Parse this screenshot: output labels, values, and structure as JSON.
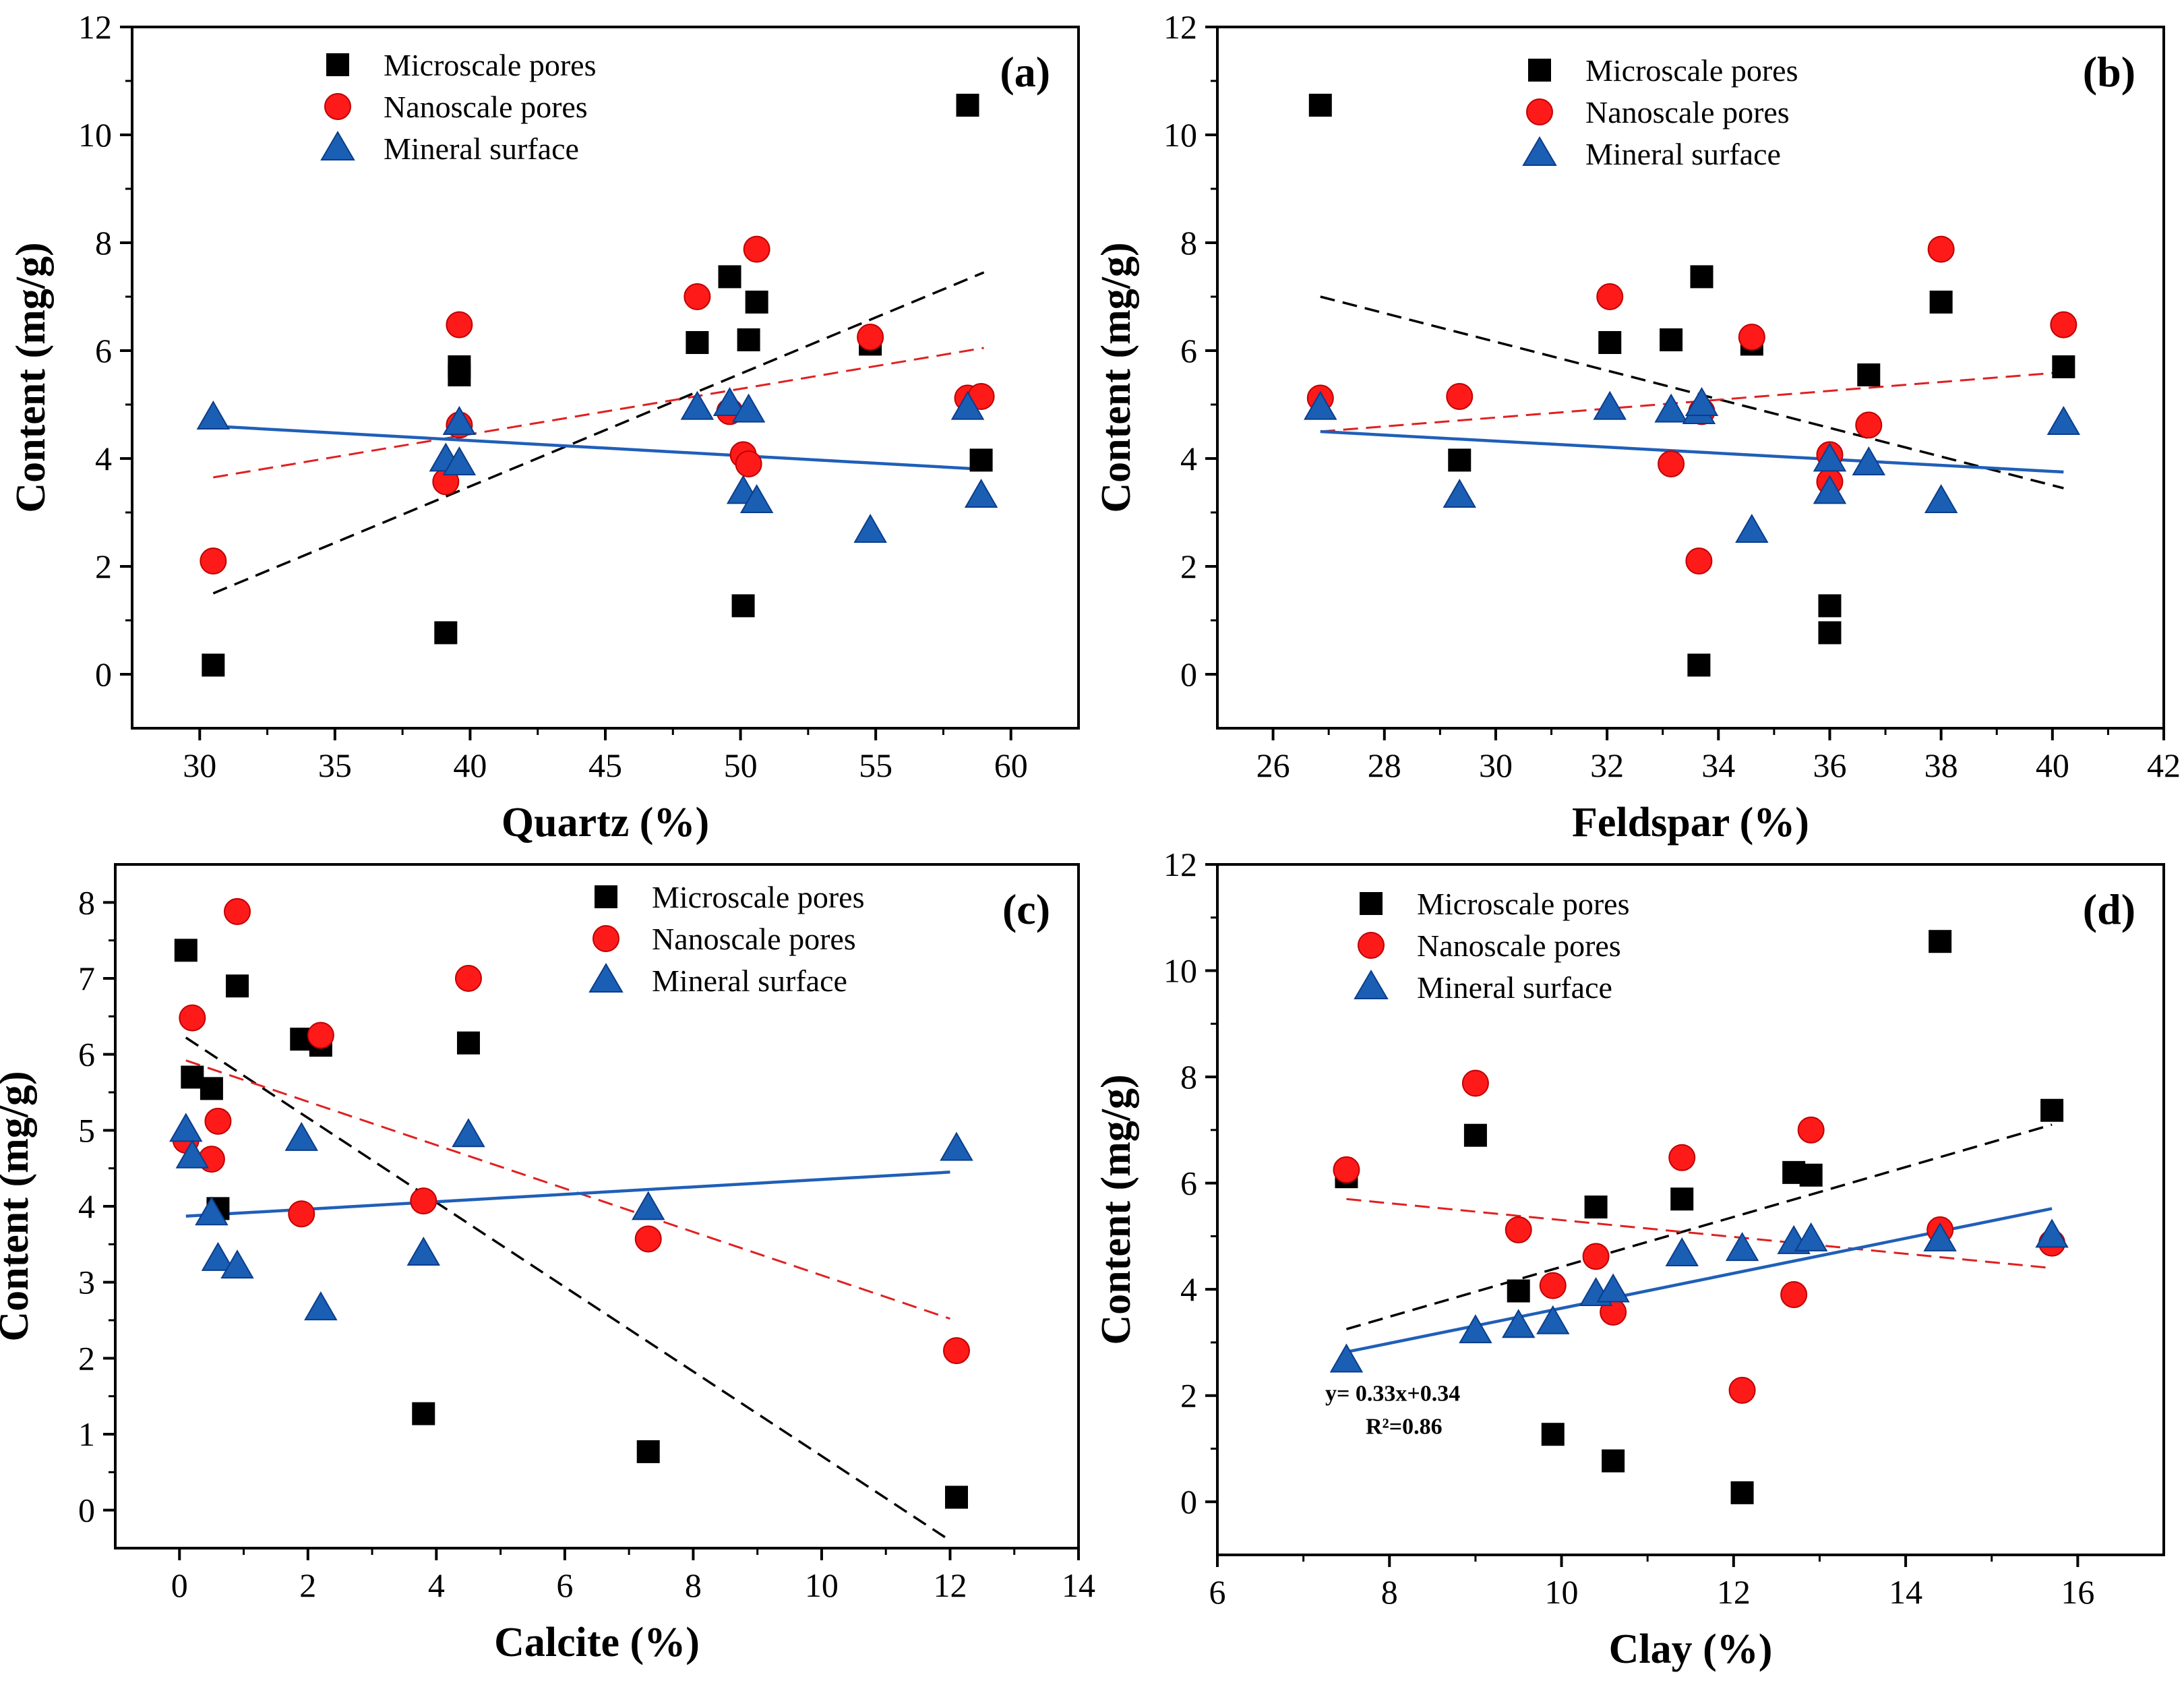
{
  "figure": {
    "legend_placement": "top-left"
  },
  "series_names": [
    "Microscale pores",
    "Nanoscale pores",
    "Mineral surface"
  ],
  "colors": {
    "micro": "#000000",
    "nano": "#ff1a1a",
    "nano_stroke": "#c00000",
    "mineral": "#1a5fb4",
    "mineral_stroke": "#0b3d8c",
    "micro_trend": "#000000",
    "nano_trend": "#e02020",
    "mineral_trend": "#1f5fb8"
  },
  "chart_data": [
    {
      "type": "scatter",
      "panel_label": "(a)",
      "xlabel": "Quartz (%)",
      "ylabel": "Content (mg/g)",
      "xlim": [
        27.5,
        62.5
      ],
      "ylim": [
        -1,
        12
      ],
      "xticks": [
        30,
        35,
        40,
        45,
        50,
        55,
        60
      ],
      "xtick_labels": [
        "30",
        "35",
        "40",
        "45",
        "50",
        "55",
        "60"
      ],
      "yticks": [
        0,
        2,
        4,
        6,
        8,
        10,
        12
      ],
      "ytick_labels": [
        "0",
        "2",
        "4",
        "6",
        "8",
        "10",
        "12"
      ],
      "series": [
        {
          "name": "Microscale pores",
          "marker": "square",
          "points": [
            [
              30.5,
              0.17
            ],
            [
              39.1,
              0.77
            ],
            [
              39.6,
              5.55
            ],
            [
              39.6,
              5.7
            ],
            [
              48.4,
              6.15
            ],
            [
              49.6,
              7.37
            ],
            [
              50.1,
              1.27
            ],
            [
              50.3,
              6.2
            ],
            [
              50.6,
              6.9
            ],
            [
              54.8,
              6.12
            ],
            [
              58.4,
              10.55
            ],
            [
              58.9,
              3.97
            ]
          ],
          "trend": [
            [
              30.5,
              1.5
            ],
            [
              59.0,
              7.45
            ]
          ]
        },
        {
          "name": "Nanoscale pores",
          "marker": "circle",
          "points": [
            [
              30.5,
              2.1
            ],
            [
              39.1,
              3.57
            ],
            [
              39.6,
              4.62
            ],
            [
              39.6,
              6.48
            ],
            [
              48.4,
              7.0
            ],
            [
              49.6,
              4.87
            ],
            [
              50.1,
              4.07
            ],
            [
              50.3,
              3.9
            ],
            [
              50.6,
              7.88
            ],
            [
              54.8,
              6.25
            ],
            [
              58.4,
              5.12
            ],
            [
              58.9,
              5.15
            ]
          ],
          "trend": [
            [
              30.5,
              3.65
            ],
            [
              59.0,
              6.05
            ]
          ]
        },
        {
          "name": "Mineral surface",
          "marker": "triangle",
          "points": [
            [
              30.5,
              4.75
            ],
            [
              39.1,
              3.97
            ],
            [
              39.6,
              4.65
            ],
            [
              39.6,
              3.9
            ],
            [
              48.4,
              4.93
            ],
            [
              49.6,
              5.0
            ],
            [
              50.1,
              3.37
            ],
            [
              50.3,
              4.88
            ],
            [
              50.6,
              3.2
            ],
            [
              54.8,
              2.65
            ],
            [
              58.4,
              4.93
            ],
            [
              58.9,
              3.3
            ]
          ],
          "trend": [
            [
              30.5,
              4.6
            ],
            [
              59.0,
              3.8
            ]
          ]
        }
      ]
    },
    {
      "type": "scatter",
      "panel_label": "(b)",
      "xlabel": "Feldspar (%)",
      "ylabel": "Content (mg/g)",
      "xlim": [
        25,
        42
      ],
      "ylim": [
        -1,
        12
      ],
      "xticks": [
        26,
        28,
        30,
        32,
        34,
        36,
        38,
        40,
        42
      ],
      "xtick_labels": [
        "26",
        "28",
        "30",
        "32",
        "34",
        "36",
        "38",
        "40",
        "42"
      ],
      "yticks": [
        0,
        2,
        4,
        6,
        8,
        10,
        12
      ],
      "ytick_labels": [
        "0",
        "2",
        "4",
        "6",
        "8",
        "10",
        "12"
      ],
      "series": [
        {
          "name": "Microscale pores",
          "marker": "square",
          "points": [
            [
              26.85,
              10.55
            ],
            [
              29.35,
              3.97
            ],
            [
              32.05,
              6.15
            ],
            [
              33.15,
              6.2
            ],
            [
              33.65,
              0.17
            ],
            [
              33.7,
              7.37
            ],
            [
              34.6,
              6.12
            ],
            [
              36.0,
              1.27
            ],
            [
              36.0,
              0.77
            ],
            [
              36.7,
              5.55
            ],
            [
              38.0,
              6.9
            ],
            [
              40.2,
              5.7
            ]
          ],
          "trend": [
            [
              26.85,
              7.0
            ],
            [
              40.2,
              3.45
            ]
          ]
        },
        {
          "name": "Nanoscale pores",
          "marker": "circle",
          "points": [
            [
              26.85,
              5.12
            ],
            [
              29.35,
              5.15
            ],
            [
              32.05,
              7.0
            ],
            [
              33.15,
              3.9
            ],
            [
              33.65,
              2.1
            ],
            [
              33.7,
              4.87
            ],
            [
              34.6,
              6.25
            ],
            [
              36.0,
              4.07
            ],
            [
              36.0,
              3.57
            ],
            [
              36.7,
              4.62
            ],
            [
              38.0,
              7.88
            ],
            [
              40.2,
              6.48
            ]
          ],
          "trend": [
            [
              26.85,
              4.5
            ],
            [
              40.2,
              5.6
            ]
          ]
        },
        {
          "name": "Mineral surface",
          "marker": "triangle",
          "points": [
            [
              26.85,
              4.93
            ],
            [
              29.35,
              3.3
            ],
            [
              32.05,
              4.93
            ],
            [
              33.15,
              4.88
            ],
            [
              33.65,
              4.85
            ],
            [
              33.7,
              5.0
            ],
            [
              34.6,
              2.65
            ],
            [
              36.0,
              3.97
            ],
            [
              36.0,
              3.37
            ],
            [
              36.7,
              3.9
            ],
            [
              38.0,
              3.2
            ],
            [
              40.2,
              4.65
            ]
          ],
          "trend": [
            [
              26.85,
              4.5
            ],
            [
              40.2,
              3.75
            ]
          ]
        }
      ]
    },
    {
      "type": "scatter",
      "panel_label": "(c)",
      "xlabel": "Calcite (%)",
      "ylabel": "Content (mg/g)",
      "xlim": [
        -1,
        14
      ],
      "ylim": [
        -0.5,
        8.5
      ],
      "xticks": [
        0,
        2,
        4,
        6,
        8,
        10,
        12,
        14
      ],
      "xtick_labels": [
        "0",
        "2",
        "4",
        "6",
        "8",
        "10",
        "12",
        "14"
      ],
      "yticks": [
        0,
        1,
        2,
        3,
        4,
        5,
        6,
        7,
        8
      ],
      "ytick_labels": [
        "0",
        "1",
        "2",
        "3",
        "4",
        "5",
        "6",
        "7",
        "8"
      ],
      "series": [
        {
          "name": "Microscale pores",
          "marker": "square",
          "points": [
            [
              0.1,
              7.37
            ],
            [
              0.2,
              5.7
            ],
            [
              0.5,
              5.55
            ],
            [
              0.6,
              3.97
            ],
            [
              0.9,
              6.9
            ],
            [
              1.9,
              6.2
            ],
            [
              2.2,
              6.12
            ],
            [
              3.8,
              1.27
            ],
            [
              4.5,
              6.15
            ],
            [
              7.3,
              0.77
            ],
            [
              12.1,
              0.17
            ]
          ],
          "trend": [
            [
              0.1,
              6.22
            ],
            [
              12.0,
              -0.4
            ]
          ]
        },
        {
          "name": "Nanoscale pores",
          "marker": "circle",
          "points": [
            [
              0.1,
              4.87
            ],
            [
              0.2,
              6.48
            ],
            [
              0.5,
              4.62
            ],
            [
              0.6,
              5.12
            ],
            [
              0.9,
              7.88
            ],
            [
              1.9,
              3.9
            ],
            [
              2.2,
              6.25
            ],
            [
              3.8,
              4.07
            ],
            [
              4.5,
              7.0
            ],
            [
              7.3,
              3.57
            ],
            [
              12.1,
              2.1
            ]
          ],
          "trend": [
            [
              0.1,
              5.92
            ],
            [
              12.0,
              2.52
            ]
          ]
        },
        {
          "name": "Mineral surface",
          "marker": "triangle",
          "points": [
            [
              0.1,
              5.0
            ],
            [
              0.2,
              4.65
            ],
            [
              0.5,
              3.9
            ],
            [
              0.6,
              3.3
            ],
            [
              0.9,
              3.2
            ],
            [
              1.9,
              4.88
            ],
            [
              2.2,
              2.65
            ],
            [
              3.8,
              3.37
            ],
            [
              4.5,
              4.93
            ],
            [
              7.3,
              3.97
            ],
            [
              12.1,
              4.75
            ]
          ],
          "trend": [
            [
              0.1,
              3.87
            ],
            [
              12.0,
              4.45
            ]
          ]
        }
      ]
    },
    {
      "type": "scatter",
      "panel_label": "(d)",
      "xlabel": "Clay (%)",
      "ylabel": "Content (mg/g)",
      "xlim": [
        6,
        17
      ],
      "ylim": [
        -1,
        12
      ],
      "xticks": [
        6,
        8,
        10,
        12,
        14,
        16
      ],
      "xtick_labels": [
        "6",
        "8",
        "10",
        "12",
        "14",
        "16"
      ],
      "yticks": [
        0,
        2,
        4,
        6,
        8,
        10,
        12
      ],
      "ytick_labels": [
        "0",
        "2",
        "4",
        "6",
        "8",
        "10",
        "12"
      ],
      "equation": "y= 0.33x+0.34",
      "r_squared": "R²=0.86",
      "series": [
        {
          "name": "Microscale pores",
          "marker": "square",
          "points": [
            [
              7.5,
              6.12
            ],
            [
              9.0,
              6.9
            ],
            [
              9.5,
              3.97
            ],
            [
              9.9,
              1.27
            ],
            [
              10.4,
              5.55
            ],
            [
              10.6,
              0.77
            ],
            [
              11.4,
              5.7
            ],
            [
              12.1,
              0.17
            ],
            [
              12.7,
              6.2
            ],
            [
              12.9,
              6.15
            ],
            [
              14.4,
              10.55
            ],
            [
              15.7,
              7.37
            ]
          ],
          "trend": [
            [
              7.5,
              3.25
            ],
            [
              15.7,
              7.1
            ]
          ]
        },
        {
          "name": "Nanoscale pores",
          "marker": "circle",
          "points": [
            [
              7.5,
              6.25
            ],
            [
              9.0,
              7.88
            ],
            [
              9.5,
              5.12
            ],
            [
              9.9,
              4.07
            ],
            [
              10.4,
              4.62
            ],
            [
              10.6,
              3.57
            ],
            [
              11.4,
              6.48
            ],
            [
              12.1,
              2.1
            ],
            [
              12.7,
              3.9
            ],
            [
              12.9,
              7.0
            ],
            [
              14.4,
              5.12
            ],
            [
              15.7,
              4.87
            ]
          ],
          "trend": [
            [
              7.5,
              5.7
            ],
            [
              15.7,
              4.4
            ]
          ]
        },
        {
          "name": "Mineral surface",
          "marker": "triangle",
          "points": [
            [
              7.5,
              2.65
            ],
            [
              9.0,
              3.2
            ],
            [
              9.5,
              3.3
            ],
            [
              9.9,
              3.37
            ],
            [
              10.4,
              3.9
            ],
            [
              10.6,
              3.97
            ],
            [
              11.4,
              4.65
            ],
            [
              12.1,
              4.75
            ],
            [
              12.7,
              4.88
            ],
            [
              12.9,
              4.93
            ],
            [
              14.4,
              4.93
            ],
            [
              15.7,
              5.0
            ]
          ],
          "trend": [
            [
              7.5,
              2.82
            ],
            [
              15.7,
              5.52
            ]
          ]
        }
      ]
    }
  ]
}
